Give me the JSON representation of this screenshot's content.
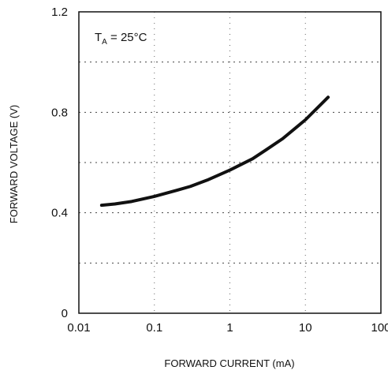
{
  "chart_data": {
    "type": "line",
    "xlabel": "FORWARD CURRENT (mA)",
    "ylabel": "FORWARD VOLTAGE (V)",
    "xscale": "log",
    "xlim": [
      0.01,
      100
    ],
    "ylim": [
      0,
      1.2
    ],
    "grid": "dotted",
    "x_ticks": [
      "0.01",
      "0.1",
      "1",
      "10",
      "100"
    ],
    "y_ticks": [
      "0",
      "0.4",
      "0.8",
      "1.2"
    ],
    "annotation": {
      "main": "T",
      "subscript": "A",
      "rest": " = 25°C"
    },
    "series": [
      {
        "x": [
          0.02,
          0.03,
          0.05,
          0.1,
          0.2,
          0.3,
          0.5,
          1,
          2,
          3,
          5,
          10,
          20
        ],
        "y": [
          0.43,
          0.435,
          0.445,
          0.465,
          0.49,
          0.505,
          0.53,
          0.57,
          0.615,
          0.65,
          0.695,
          0.77,
          0.86
        ]
      }
    ]
  }
}
